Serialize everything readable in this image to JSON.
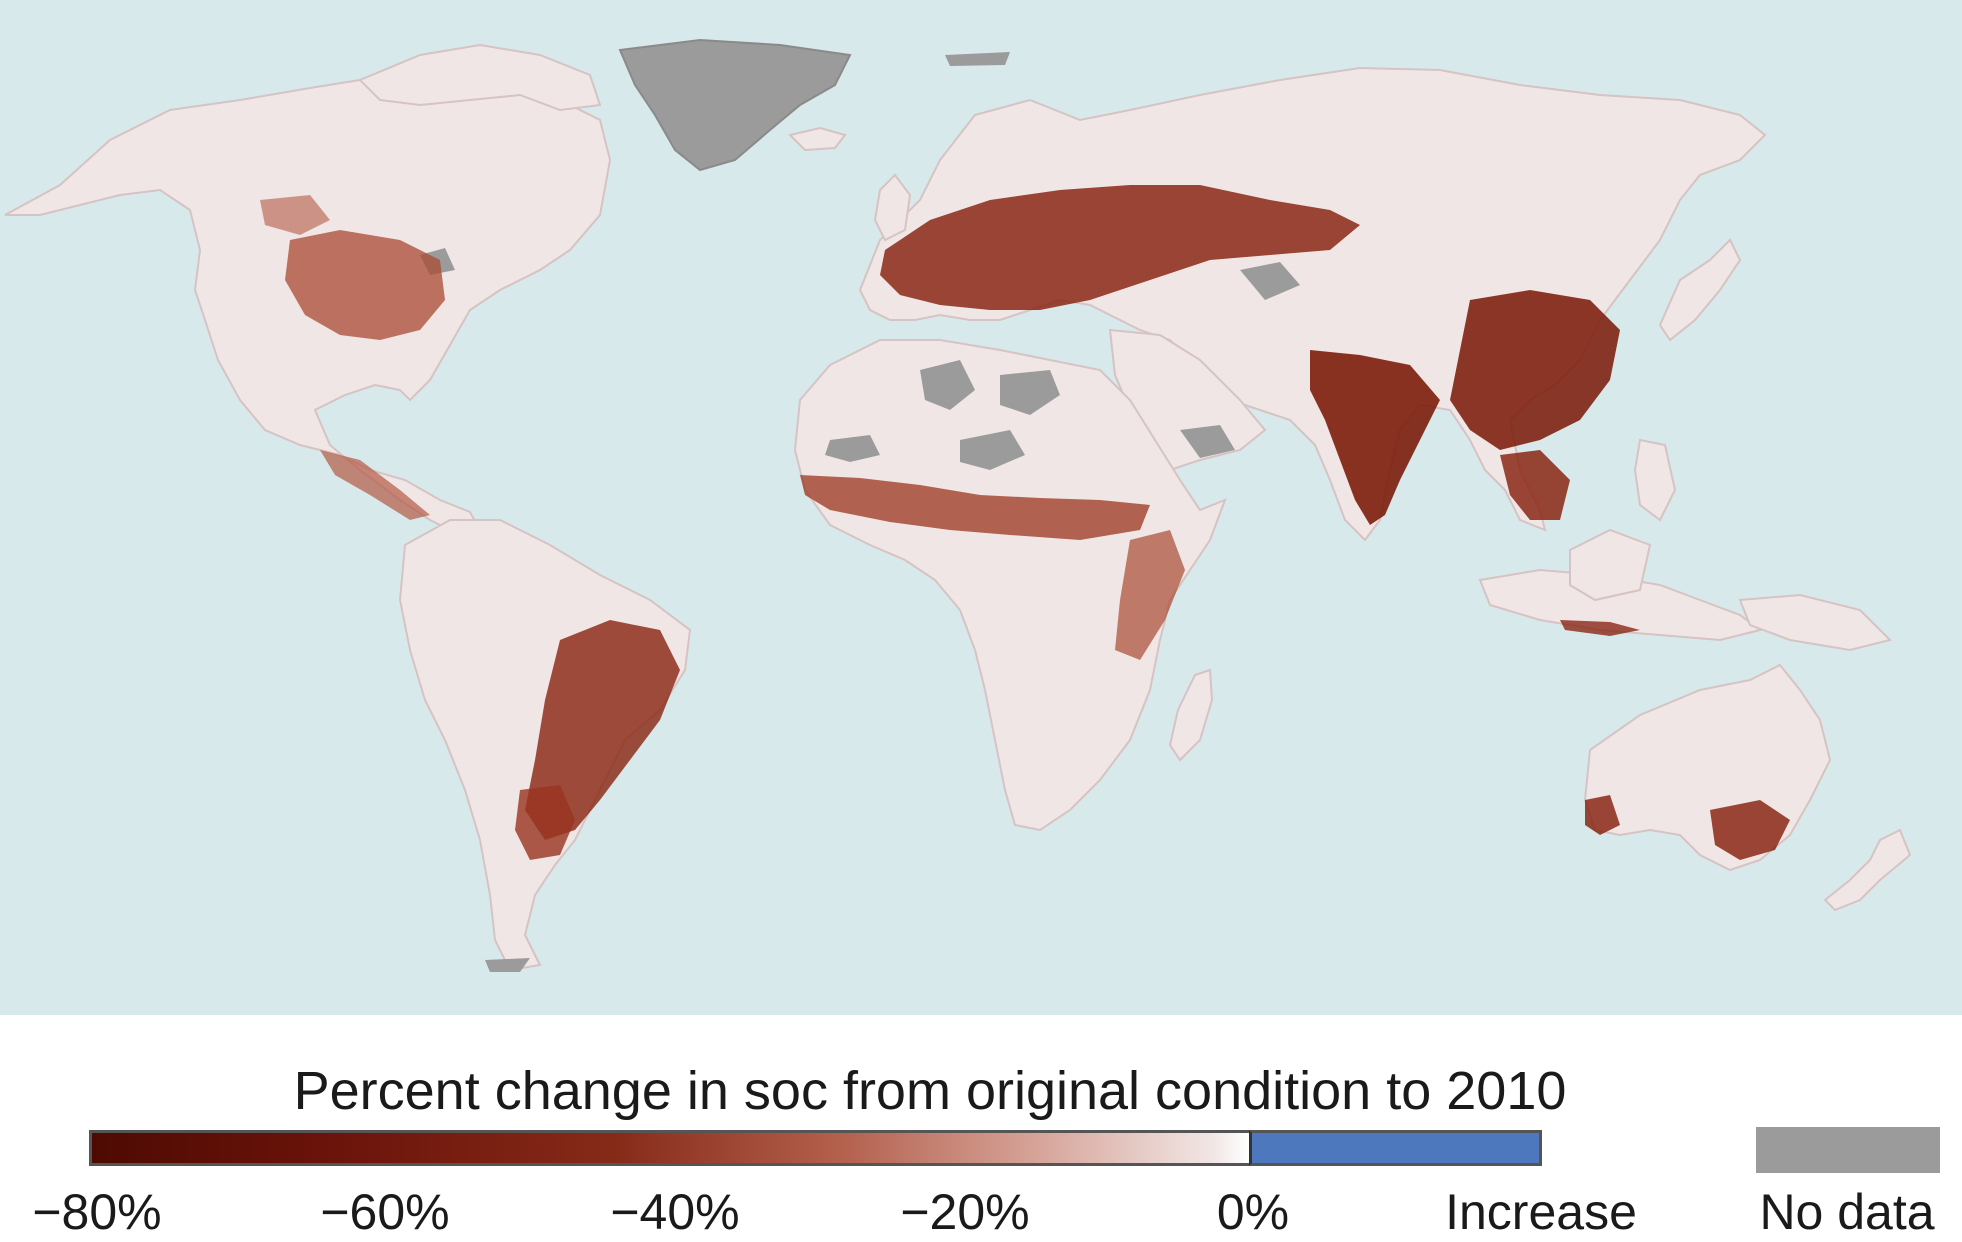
{
  "legend": {
    "title": "Percent change in soc from original condition to 2010",
    "ticks": [
      "−80%",
      "−60%",
      "−40%",
      "−20%",
      "0%"
    ],
    "increase_label": "Increase",
    "nodata_label": "No data",
    "colors": {
      "decrease_max": "#4e0a02",
      "decrease_mid": "#862a18",
      "zero": "#ffffff",
      "increase": "#4e78bd",
      "no_data": "#9b9b9b",
      "ocean": "#d8e9eb",
      "land_base": "#f1e6e6"
    }
  }
}
